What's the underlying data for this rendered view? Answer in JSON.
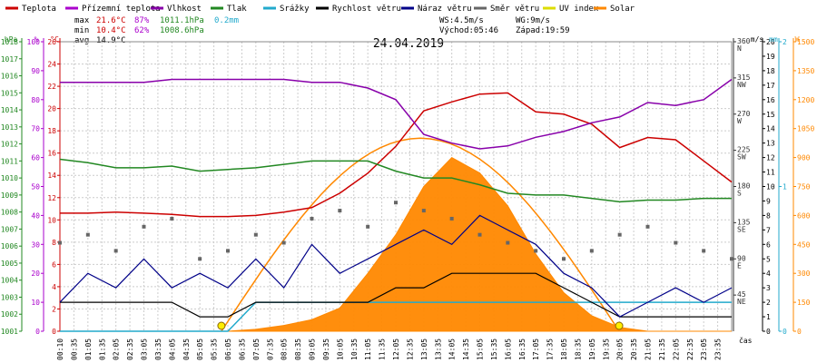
{
  "legend": [
    {
      "label": "Teplota",
      "color": "#cc0000"
    },
    {
      "label": "Přízemní teplota",
      "color": "#aa00cc"
    },
    {
      "label": "Vlhkost",
      "color": "#8800aa"
    },
    {
      "label": "Tlak",
      "color": "#228822"
    },
    {
      "label": "Srážky",
      "color": "#22aacc"
    },
    {
      "label": "Rychlost větru",
      "color": "#000000"
    },
    {
      "label": "Náraz větru",
      "color": "#000088"
    },
    {
      "label": "Směr větru",
      "color": "#666666"
    },
    {
      "label": "UV index",
      "color": "#dddd00"
    },
    {
      "label": "Solar",
      "color": "#ff8800"
    }
  ],
  "stats": {
    "max_label": "max",
    "max_temp": "21.6°C",
    "max_hum": "87%",
    "max_press": "1011.1hPa",
    "max_rain": "0.2mm",
    "min_label": "min",
    "min_temp": "10.4°C",
    "min_hum": "62%",
    "min_press": "1008.6hPa",
    "avg_label": "avg",
    "avg_temp": "14.9°C",
    "ws": "WS:4.5m/s",
    "wg": "WG:9m/s",
    "sunrise": "Východ:05:46",
    "sunset": "Západ:19:59"
  },
  "title": "24.04.2019",
  "axis_units": {
    "hpa": "hPa",
    "pct": "%",
    "degc": "°C",
    "ms": "m/s",
    "mm": "mm",
    "w": "W",
    "cas": "čas"
  },
  "colors": {
    "hpa": "#228822",
    "pct": "#aa00cc",
    "degc": "#cc0000",
    "deg": "#333333",
    "ms": "#000000",
    "mm": "#22aacc",
    "w": "#ff8800"
  },
  "chart_data": {
    "type": "line",
    "title": "24.04.2019",
    "x_ticks": [
      "00:10",
      "00:35",
      "01:05",
      "01:35",
      "02:05",
      "02:35",
      "03:05",
      "03:35",
      "04:05",
      "04:35",
      "05:05",
      "05:35",
      "06:05",
      "06:35",
      "07:05",
      "07:35",
      "08:05",
      "08:35",
      "09:05",
      "09:35",
      "10:05",
      "10:35",
      "11:05",
      "11:35",
      "12:05",
      "12:35",
      "13:05",
      "13:35",
      "14:05",
      "14:35",
      "15:05",
      "15:35",
      "16:05",
      "16:35",
      "17:05",
      "17:35",
      "18:05",
      "18:35",
      "19:05",
      "19:35",
      "20:05",
      "20:35",
      "21:05",
      "21:35",
      "22:05",
      "22:35",
      "23:05",
      "23:35"
    ],
    "axes": {
      "hpa": {
        "ticks": [
          "1018",
          "1017",
          "1016",
          "1015",
          "1014",
          "1013",
          "1012",
          "1011",
          "1010",
          "1009",
          "1008",
          "1007",
          "1006",
          "1005",
          "1004",
          "1003",
          "1002",
          "1001"
        ],
        "range": [
          1001,
          1018
        ]
      },
      "pct": {
        "ticks": [
          "100",
          "90",
          "80",
          "70",
          "60",
          "50",
          "40",
          "30",
          "20",
          "10",
          "0"
        ],
        "range": [
          0,
          100
        ]
      },
      "degc": {
        "ticks": [
          "26",
          "24",
          "22",
          "20",
          "18",
          "16",
          "14",
          "12",
          "10",
          "8",
          "6",
          "4",
          "2",
          "0"
        ],
        "range": [
          0,
          26
        ]
      },
      "deg": {
        "ticks": [
          {
            "v": 360,
            "t": "360",
            "d": "N"
          },
          {
            "v": 315,
            "t": "315",
            "d": "NW"
          },
          {
            "v": 270,
            "t": "270",
            "d": "W"
          },
          {
            "v": 225,
            "t": "225",
            "d": "SW"
          },
          {
            "v": 180,
            "t": "180",
            "d": "S"
          },
          {
            "v": 135,
            "t": "135",
            "d": "SE"
          },
          {
            "v": 90,
            "t": "90",
            "d": "E"
          },
          {
            "v": 45,
            "t": "45",
            "d": "NE"
          }
        ],
        "range": [
          0,
          360
        ]
      },
      "ms": {
        "ticks": [
          "20",
          "19",
          "18",
          "17",
          "16",
          "15",
          "14",
          "13",
          "12",
          "11",
          "10",
          "9",
          "8",
          "7",
          "6",
          "5",
          "4",
          "3",
          "2",
          "1",
          "0"
        ],
        "range": [
          0,
          20
        ]
      },
      "mm": {
        "ticks": [
          "2",
          "1",
          "0"
        ],
        "range": [
          0,
          2
        ]
      },
      "w": {
        "ticks": [
          "1500",
          "1350",
          "1200",
          "1050",
          "900",
          "750",
          "600",
          "450",
          "300",
          "150",
          "0"
        ],
        "range": [
          0,
          1500
        ]
      }
    },
    "hours": [
      0,
      1,
      2,
      3,
      4,
      5,
      6,
      7,
      8,
      9,
      10,
      11,
      12,
      13,
      14,
      15,
      16,
      17,
      18,
      19,
      20,
      21,
      22,
      23,
      24
    ],
    "series": [
      {
        "name": "Teplota",
        "axis": "degc",
        "color": "#cc0000",
        "values": [
          10.6,
          10.6,
          10.7,
          10.6,
          10.5,
          10.3,
          10.3,
          10.4,
          10.7,
          11.1,
          12.4,
          14.2,
          16.6,
          19.8,
          20.6,
          21.3,
          21.4,
          19.7,
          19.5,
          18.6,
          16.5,
          17.4,
          17.2,
          15.3,
          13.4
        ]
      },
      {
        "name": "Vlhkost",
        "axis": "pct",
        "color": "#8800aa",
        "values": [
          86,
          86,
          86,
          86,
          87,
          87,
          87,
          87,
          87,
          86,
          86,
          84,
          80,
          68,
          65,
          63,
          64,
          67,
          69,
          72,
          74,
          79,
          78,
          80,
          87
        ]
      },
      {
        "name": "Tlak",
        "axis": "hpa",
        "color": "#228822",
        "values": [
          1011.1,
          1010.9,
          1010.6,
          1010.6,
          1010.7,
          1010.4,
          1010.5,
          1010.6,
          1010.8,
          1011.0,
          1011.0,
          1011.0,
          1010.4,
          1010.0,
          1010.0,
          1009.6,
          1009.1,
          1009.0,
          1009.0,
          1008.8,
          1008.6,
          1008.7,
          1008.7,
          1008.8,
          1008.8
        ]
      },
      {
        "name": "Srážky",
        "axis": "mm",
        "color": "#22aacc",
        "values": [
          0,
          0,
          0,
          0,
          0,
          0,
          0,
          0.2,
          0.2,
          0.2,
          0.2,
          0.2,
          0.2,
          0.2,
          0.2,
          0.2,
          0.2,
          0.2,
          0.2,
          0.2,
          0.2,
          0.2,
          0.2,
          0.2,
          0.2
        ]
      },
      {
        "name": "Rychlost větru",
        "axis": "ms",
        "color": "#000000",
        "values": [
          2,
          2,
          2,
          2,
          2,
          1,
          1,
          2,
          2,
          2,
          2,
          2,
          3,
          3,
          4,
          4,
          4,
          4,
          3,
          2,
          1,
          1,
          1,
          1,
          1
        ]
      },
      {
        "name": "Náraz větru",
        "axis": "ms",
        "color": "#000088",
        "values": [
          2,
          4,
          3,
          5,
          3,
          4,
          3,
          5,
          3,
          6,
          4,
          5,
          6,
          7,
          6,
          8,
          7,
          6,
          4,
          3,
          1,
          2,
          3,
          2,
          3
        ]
      },
      {
        "name": "Směr větru",
        "axis": "deg",
        "color": "#666666",
        "values": [
          110,
          120,
          100,
          130,
          140,
          90,
          100,
          120,
          110,
          140,
          150,
          130,
          160,
          150,
          140,
          120,
          110,
          100,
          90,
          100,
          120,
          130,
          110,
          100,
          90
        ]
      },
      {
        "name": "Solar",
        "axis": "w",
        "color": "#ff8800",
        "values": [
          0,
          0,
          0,
          0,
          0,
          0,
          0,
          10,
          30,
          60,
          120,
          300,
          500,
          750,
          900,
          820,
          650,
          400,
          200,
          80,
          20,
          0,
          0,
          0,
          0
        ]
      }
    ],
    "sun_curve_peak_w": 1000,
    "sunrise_hour": 5.77,
    "sunset_hour": 19.98
  }
}
